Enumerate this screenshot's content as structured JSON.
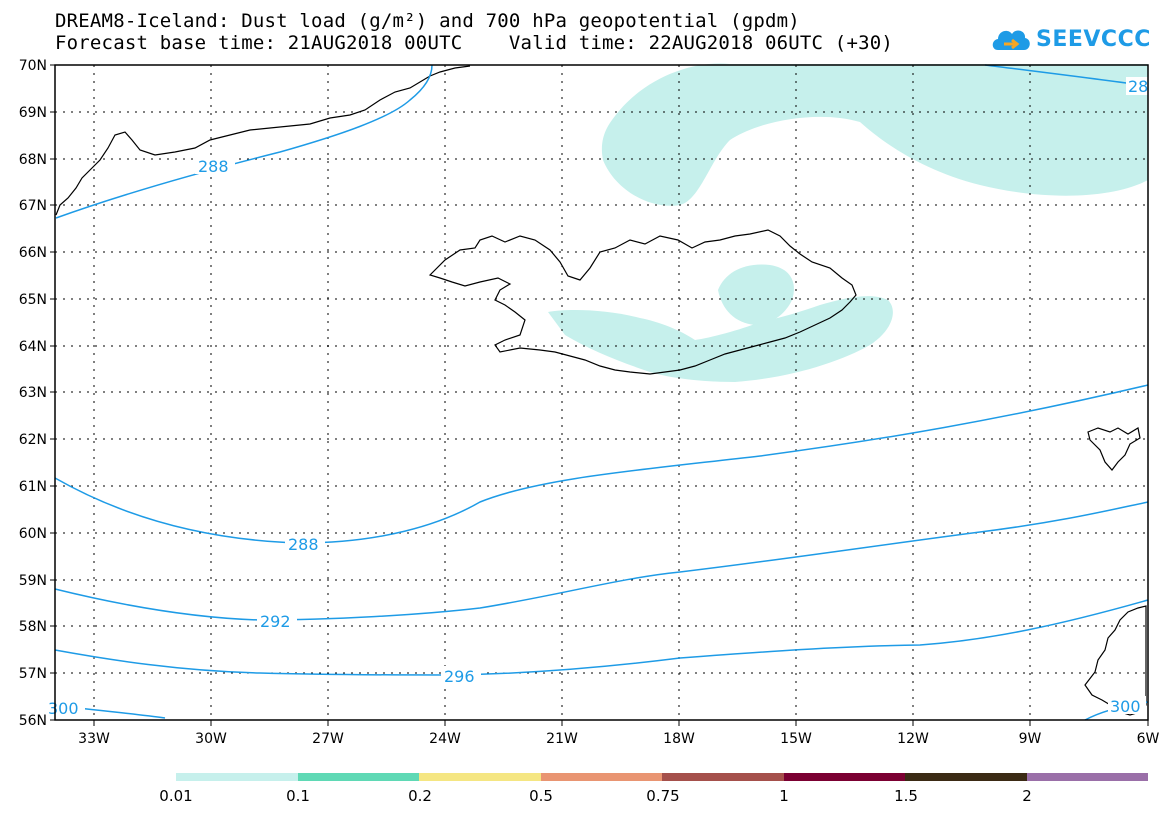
{
  "header": {
    "title_line1": "DREAM8-Iceland: Dust load (g/m²) and 700 hPa geopotential (gpdm)",
    "title_line2": "Forecast base time: 21AUG2018 00UTC    Valid time: 22AUG2018 06UTC (+30)"
  },
  "logo": {
    "text": "SEEVCCC",
    "icon": "cloud-icon"
  },
  "map": {
    "lat_labels": [
      "70N",
      "69N",
      "68N",
      "67N",
      "66N",
      "65N",
      "64N",
      "63N",
      "62N",
      "61N",
      "60N",
      "59N",
      "58N",
      "57N",
      "56N"
    ],
    "lon_labels": [
      "33W",
      "30W",
      "27W",
      "24W",
      "21W",
      "18W",
      "15W",
      "12W",
      "9W",
      "6W"
    ],
    "contour_labels": [
      "288",
      "288",
      "292",
      "296",
      "300",
      "300",
      "28"
    ],
    "contour_color": "#1e9be6",
    "dust_color": "#c6f0ec",
    "coastline_color": "#000000"
  },
  "legend": {
    "colors": [
      "#c6f0ec",
      "#5fd9b5",
      "#f5e682",
      "#e99572",
      "#a5504b",
      "#7b0032",
      "#3b2a14",
      "#9a6fa8"
    ],
    "labels": [
      "0.01",
      "0.1",
      "0.2",
      "0.5",
      "0.75",
      "1",
      "1.5",
      "2"
    ]
  }
}
